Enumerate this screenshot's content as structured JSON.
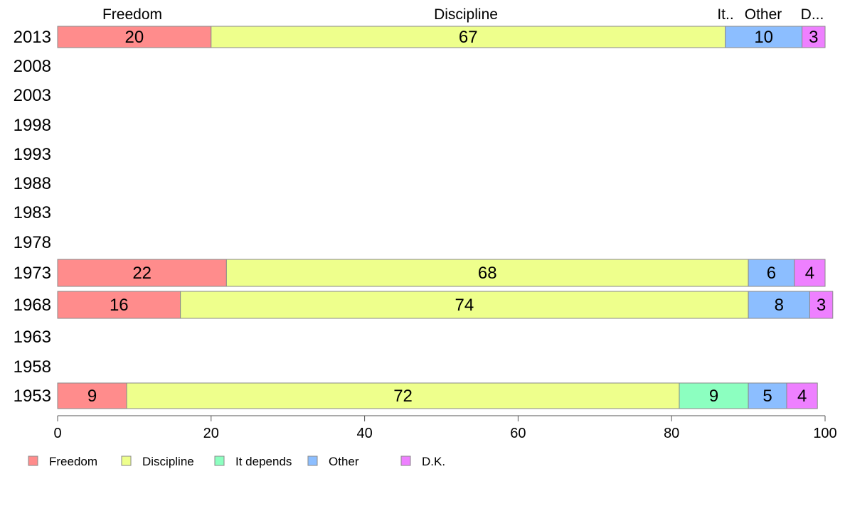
{
  "chart_data": {
    "type": "bar",
    "orientation": "horizontal",
    "stacked": true,
    "categories": [
      "2013",
      "2008",
      "2003",
      "1998",
      "1993",
      "1988",
      "1983",
      "1978",
      "1973",
      "1968",
      "1963",
      "1958",
      "1953"
    ],
    "series": [
      {
        "name": "Freedom",
        "color": "#ff8c8c",
        "values": [
          20,
          null,
          null,
          null,
          null,
          null,
          null,
          null,
          22,
          16,
          null,
          null,
          9
        ]
      },
      {
        "name": "Discipline",
        "color": "#eeff8c",
        "values": [
          67,
          null,
          null,
          null,
          null,
          null,
          null,
          null,
          68,
          74,
          null,
          null,
          72
        ]
      },
      {
        "name": "It depends",
        "color": "#8cffc0",
        "values": [
          0,
          null,
          null,
          null,
          null,
          null,
          null,
          null,
          0,
          0,
          null,
          null,
          9
        ]
      },
      {
        "name": "Other",
        "color": "#8cbeff",
        "values": [
          10,
          null,
          null,
          null,
          null,
          null,
          null,
          null,
          6,
          8,
          null,
          null,
          5
        ]
      },
      {
        "name": "D.K.",
        "color": "#ee80ff",
        "values": [
          3,
          null,
          null,
          null,
          null,
          null,
          null,
          null,
          4,
          3,
          null,
          null,
          4
        ]
      }
    ],
    "top_labels": [
      "Freedom",
      "Discipline",
      "It..",
      "Other",
      "D..."
    ],
    "xlim": [
      0,
      100
    ],
    "xticks": [
      "0",
      "20",
      "40",
      "60",
      "80",
      "100"
    ],
    "grid": false,
    "legend_position": "bottom-left"
  }
}
